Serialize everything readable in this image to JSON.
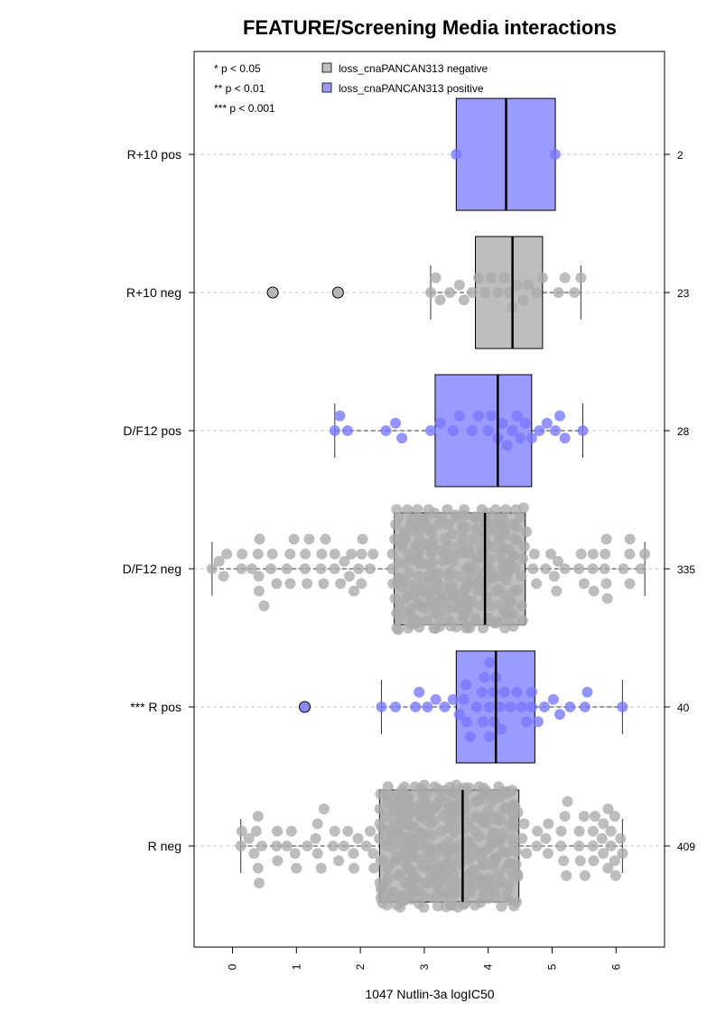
{
  "chart_data": {
    "type": "box-beeswarm",
    "orientation": "horizontal",
    "title": "FEATURE/Screening Media interactions",
    "xlabel": "1047 Nutlin-3a logIC50",
    "xlim": [
      -0.6,
      6.7
    ],
    "x_ticks": [
      0,
      1,
      2,
      3,
      4,
      5,
      6
    ],
    "significance_key": [
      "* p < 0.05",
      "** p < 0.01",
      "*** p < 0.001"
    ],
    "legend": {
      "position": "top-left",
      "items": [
        {
          "label": "loss_cnaPANCAN313 negative",
          "color": "#bebebe"
        },
        {
          "label": "loss_cnaPANCAN313 positive",
          "color": "#9a9aff"
        }
      ]
    },
    "point_colors": {
      "negative": "#aaaaaa",
      "positive": "#7777ff"
    },
    "groups": [
      {
        "label": "R+10 pos",
        "n": "2",
        "status": "positive",
        "whisker_low": 3.5,
        "q1": 3.5,
        "median": 4.28,
        "q3": 5.05,
        "whisker_high": 5.05,
        "outliers": [],
        "points": [
          3.5,
          5.05
        ]
      },
      {
        "label": "R+10 neg",
        "n": "23",
        "status": "negative",
        "whisker_low": 3.1,
        "q1": 3.8,
        "median": 4.38,
        "q3": 4.85,
        "whisker_high": 5.45,
        "outliers": [
          0.63,
          1.65
        ],
        "points": [
          3.1,
          3.18,
          3.25,
          3.4,
          3.55,
          3.62,
          3.75,
          3.85,
          3.95,
          4.05,
          4.15,
          4.25,
          4.32,
          4.38,
          4.45,
          4.55,
          4.62,
          4.75,
          4.85,
          5.1,
          5.2,
          5.35,
          5.45
        ]
      },
      {
        "label": "D/F12 pos",
        "n": "28",
        "status": "positive",
        "whisker_low": 1.6,
        "q1": 3.17,
        "median": 4.15,
        "q3": 4.68,
        "whisker_high": 5.48,
        "outliers": [],
        "points": [
          1.6,
          1.68,
          1.8,
          2.4,
          2.55,
          2.65,
          3.1,
          3.25,
          3.45,
          3.55,
          3.75,
          3.85,
          4.0,
          4.05,
          4.15,
          4.22,
          4.3,
          4.38,
          4.45,
          4.5,
          4.58,
          4.68,
          4.8,
          4.92,
          5.05,
          5.12,
          5.2,
          5.48
        ]
      },
      {
        "label": "D/F12 neg",
        "n": "335",
        "status": "negative",
        "whisker_low": -0.32,
        "q1": 2.53,
        "median": 3.95,
        "q3": 4.58,
        "whisker_high": 6.45,
        "outliers": [],
        "points": [
          -0.32,
          0.15,
          0.4,
          0.6,
          0.9,
          1.2,
          1.6,
          1.9,
          2.2,
          2.5,
          2.8,
          3.1,
          3.4,
          3.7,
          4.0,
          4.3,
          4.6,
          4.9,
          5.2,
          5.5,
          5.85,
          6.45
        ]
      },
      {
        "label": "*** R pos",
        "n": "40",
        "status": "positive",
        "whisker_low": 2.33,
        "q1": 3.5,
        "median": 4.12,
        "q3": 4.73,
        "whisker_high": 6.1,
        "outliers": [
          1.13
        ],
        "points": [
          2.33,
          2.55,
          2.92,
          3.05,
          3.18,
          3.32,
          3.45,
          3.55,
          3.62,
          3.72,
          3.82,
          3.92,
          4.02,
          4.08,
          4.12,
          4.18,
          4.25,
          4.35,
          4.45,
          4.52,
          4.6,
          4.68,
          4.78,
          4.88,
          5.02,
          5.12,
          5.28,
          5.55,
          6.1
        ]
      },
      {
        "label": "R neg",
        "n": "409",
        "status": "negative",
        "whisker_low": 0.13,
        "q1": 2.3,
        "median": 3.6,
        "q3": 4.48,
        "whisker_high": 6.1,
        "outliers": [],
        "points": [
          0.13,
          0.4,
          0.7,
          1.0,
          1.3,
          1.6,
          1.9,
          2.2,
          2.5,
          2.8,
          3.1,
          3.4,
          3.7,
          4.0,
          4.3,
          4.6,
          4.9,
          5.2,
          5.5,
          5.8,
          6.1
        ]
      }
    ]
  }
}
